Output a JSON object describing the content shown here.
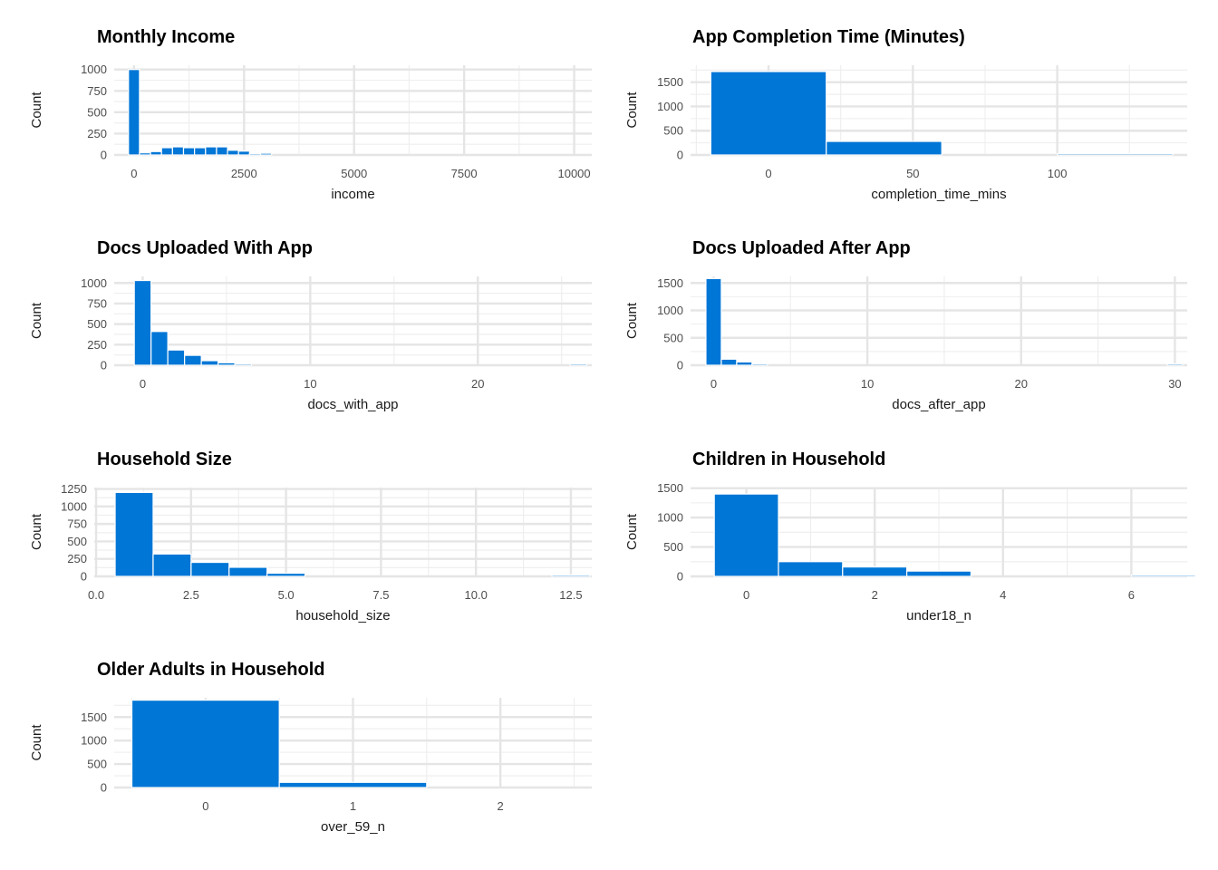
{
  "colors": {
    "bar": "#0076D6",
    "grid_major": "#e5e5e5",
    "grid_minor": "#eeeeee",
    "background": "#ffffff"
  },
  "chart_data": [
    {
      "id": "income",
      "type": "bar",
      "title": "Monthly Income",
      "xlabel": "income",
      "ylabel": "Count",
      "xlim": [
        -450,
        10400
      ],
      "ylim": [
        0,
        1050
      ],
      "xticks": [
        0,
        2500,
        5000,
        7500,
        10000
      ],
      "xtick_labels": [
        "0",
        "2500",
        "5000",
        "7500",
        "10000"
      ],
      "yticks": [
        0,
        250,
        500,
        750,
        1000
      ],
      "ytick_labels": [
        "0",
        "250",
        "500",
        "750",
        "1000"
      ],
      "bin_width": 250,
      "bins": [
        {
          "x": 0,
          "count": 1000
        },
        {
          "x": 250,
          "count": 25
        },
        {
          "x": 500,
          "count": 40
        },
        {
          "x": 750,
          "count": 85
        },
        {
          "x": 1000,
          "count": 95
        },
        {
          "x": 1250,
          "count": 85
        },
        {
          "x": 1500,
          "count": 85
        },
        {
          "x": 1750,
          "count": 95
        },
        {
          "x": 2000,
          "count": 95
        },
        {
          "x": 2250,
          "count": 55
        },
        {
          "x": 2500,
          "count": 45
        },
        {
          "x": 2750,
          "count": 15
        },
        {
          "x": 3000,
          "count": 20
        }
      ],
      "grid": true
    },
    {
      "id": "completion",
      "type": "bar",
      "title": "App Completion Time (Minutes)",
      "xlabel": "completion_time_mins",
      "ylabel": "Count",
      "xlim": [
        -27,
        145
      ],
      "ylim": [
        0,
        1850
      ],
      "xticks": [
        0,
        50,
        100
      ],
      "xtick_labels": [
        "0",
        "50",
        "100"
      ],
      "yticks": [
        0,
        500,
        1000,
        1500
      ],
      "ytick_labels": [
        "0",
        "500",
        "1000",
        "1500"
      ],
      "bin_width": 40,
      "bins": [
        {
          "x": 0,
          "count": 1720
        },
        {
          "x": 40,
          "count": 280
        },
        {
          "x": 80,
          "count": 0
        },
        {
          "x": 120,
          "count": 3
        }
      ],
      "grid": true
    },
    {
      "id": "docs_with",
      "type": "bar",
      "title": "Docs Uploaded With App",
      "xlabel": "docs_with_app",
      "ylabel": "Count",
      "xlim": [
        -1.7,
        26.8
      ],
      "ylim": [
        0,
        1080
      ],
      "xticks": [
        0,
        10,
        20
      ],
      "xtick_labels": [
        "0",
        "10",
        "20"
      ],
      "yticks": [
        0,
        250,
        500,
        750,
        1000
      ],
      "ytick_labels": [
        "0",
        "250",
        "500",
        "750",
        "1000"
      ],
      "bin_width": 1,
      "bins": [
        {
          "x": 0,
          "count": 1030
        },
        {
          "x": 1,
          "count": 410
        },
        {
          "x": 2,
          "count": 185
        },
        {
          "x": 3,
          "count": 120
        },
        {
          "x": 4,
          "count": 55
        },
        {
          "x": 5,
          "count": 30
        },
        {
          "x": 6,
          "count": 12
        },
        {
          "x": 26,
          "count": 2
        }
      ],
      "grid": true
    },
    {
      "id": "docs_after",
      "type": "bar",
      "title": "Docs Uploaded After App",
      "xlabel": "docs_after_app",
      "ylabel": "Count",
      "xlim": [
        -1.5,
        30.8
      ],
      "ylim": [
        0,
        1620
      ],
      "xticks": [
        0,
        10,
        20,
        30
      ],
      "xtick_labels": [
        "0",
        "10",
        "20",
        "30"
      ],
      "yticks": [
        0,
        500,
        1000,
        1500
      ],
      "ytick_labels": [
        "0",
        "500",
        "1000",
        "1500"
      ],
      "bin_width": 1,
      "bins": [
        {
          "x": 0,
          "count": 1580
        },
        {
          "x": 1,
          "count": 110
        },
        {
          "x": 2,
          "count": 60
        },
        {
          "x": 3,
          "count": 25
        },
        {
          "x": 30,
          "count": 2
        }
      ],
      "grid": true
    },
    {
      "id": "household",
      "type": "bar",
      "title": "Household Size",
      "xlabel": "household_size",
      "ylabel": "Count",
      "xlim": [
        -0.05,
        13.05
      ],
      "ylim": [
        0,
        1270
      ],
      "xticks": [
        0,
        2.5,
        5,
        7.5,
        10,
        12.5
      ],
      "xtick_labels": [
        "0.0",
        "2.5",
        "5.0",
        "7.5",
        "10.0",
        "12.5"
      ],
      "yticks": [
        0,
        250,
        500,
        750,
        1000,
        1250
      ],
      "ytick_labels": [
        "0",
        "250",
        "500",
        "750",
        "1000",
        "1250"
      ],
      "bin_width": 1,
      "bins": [
        {
          "x": 1,
          "count": 1200
        },
        {
          "x": 2,
          "count": 320
        },
        {
          "x": 3,
          "count": 200
        },
        {
          "x": 4,
          "count": 130
        },
        {
          "x": 5,
          "count": 45
        },
        {
          "x": 12.5,
          "count": 2
        }
      ],
      "grid": true
    },
    {
      "id": "under18",
      "type": "bar",
      "title": "Children in Household",
      "xlabel": "under18_n",
      "ylabel": "Count",
      "xlim": [
        -0.87,
        6.87
      ],
      "ylim": [
        0,
        1510
      ],
      "xticks": [
        0,
        2,
        4,
        6
      ],
      "xtick_labels": [
        "0",
        "2",
        "4",
        "6"
      ],
      "yticks": [
        0,
        500,
        1000,
        1500
      ],
      "ytick_labels": [
        "0",
        "500",
        "1000",
        "1500"
      ],
      "bin_width": 1,
      "bins": [
        {
          "x": 0,
          "count": 1400
        },
        {
          "x": 1,
          "count": 250
        },
        {
          "x": 2,
          "count": 160
        },
        {
          "x": 3,
          "count": 90
        },
        {
          "x": 6.5,
          "count": 3
        }
      ],
      "grid": true
    },
    {
      "id": "over59",
      "type": "bar",
      "title": "Older Adults in Household",
      "xlabel": "over_59_n",
      "ylabel": "Count",
      "xlim": [
        -0.62,
        2.62
      ],
      "ylim": [
        0,
        1910
      ],
      "xticks": [
        0,
        1,
        2
      ],
      "xtick_labels": [
        "0",
        "1",
        "2"
      ],
      "yticks": [
        0,
        500,
        1000,
        1500
      ],
      "ytick_labels": [
        "0",
        "500",
        "1000",
        "1500"
      ],
      "bin_width": 1,
      "bins": [
        {
          "x": 0,
          "count": 1860
        },
        {
          "x": 1,
          "count": 110
        },
        {
          "x": 2,
          "count": 0
        }
      ],
      "grid": true
    }
  ]
}
